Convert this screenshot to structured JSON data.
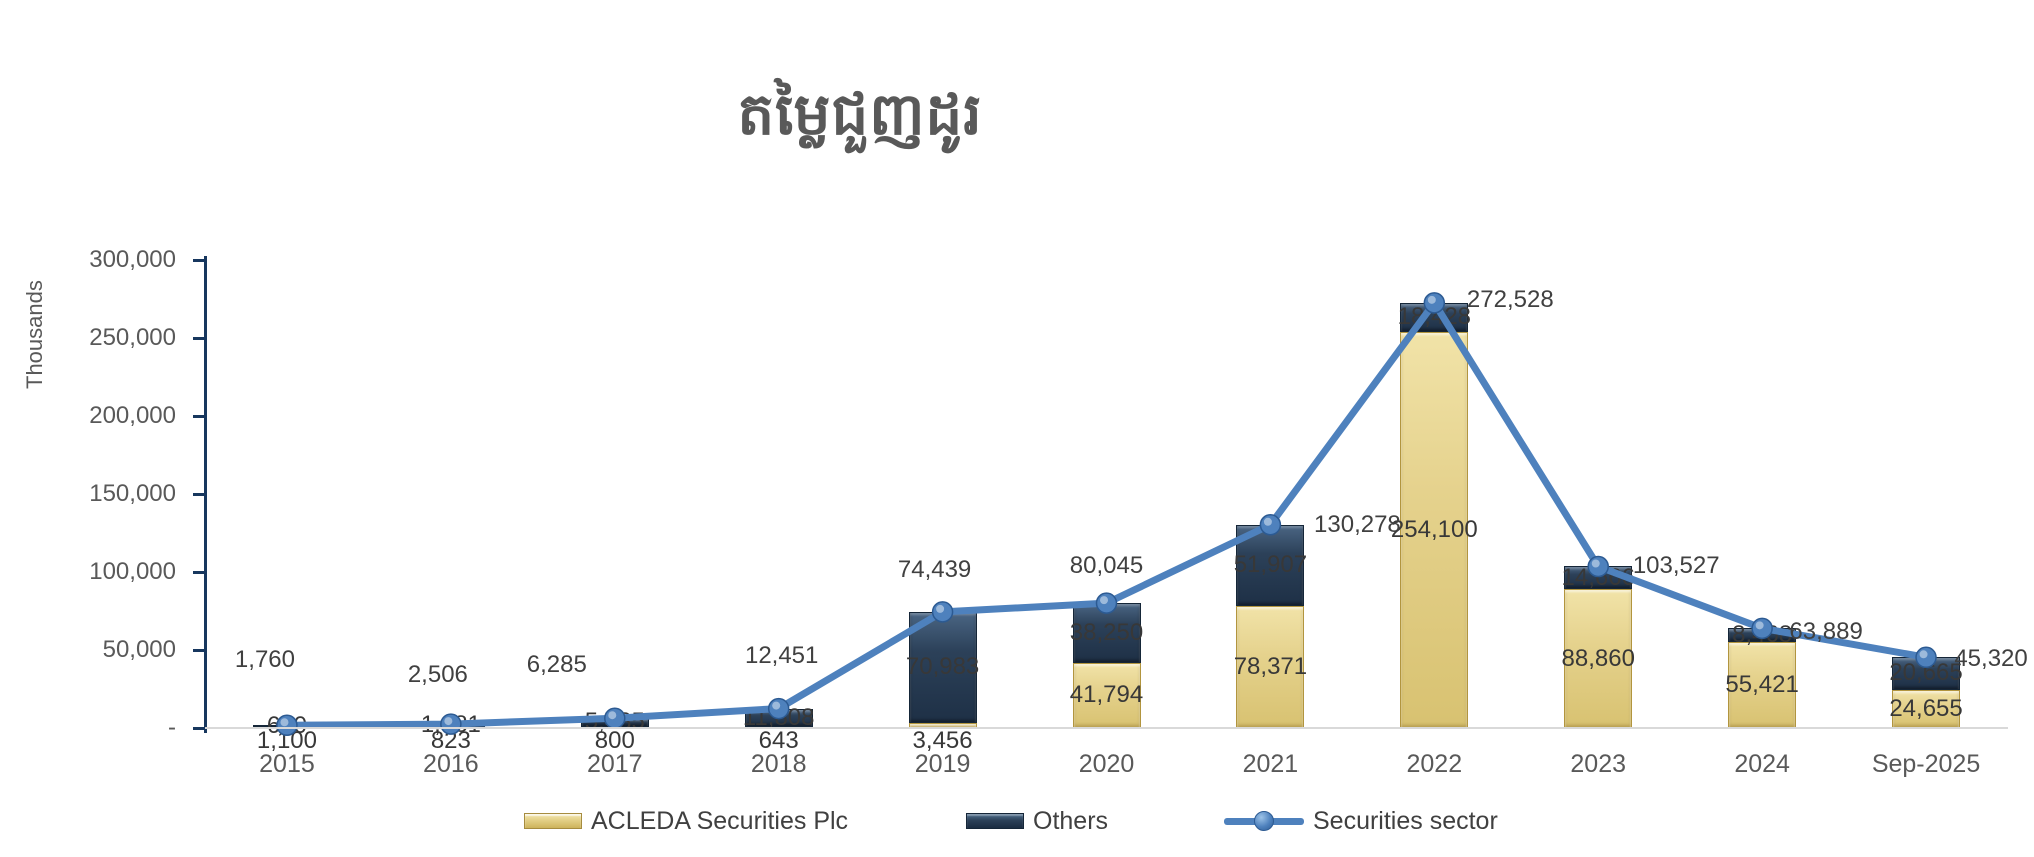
{
  "chart_data": {
    "type": "combo-stacked-bar-line",
    "title": "តម្លៃជួញដូរ",
    "y_axis_label": "Thousands",
    "y_ticks": [
      "300,000",
      "250,000",
      "200,000",
      "150,000",
      "100,000",
      "50,000",
      "-"
    ],
    "ylim": [
      0,
      300000
    ],
    "grid": false,
    "legend_position": "bottom",
    "stacked": true,
    "categories": [
      "2015",
      "2016",
      "2017",
      "2018",
      "2019",
      "2020",
      "2021",
      "2022",
      "2023",
      "2024",
      "Sep-2025"
    ],
    "series": [
      {
        "name": "ACLEDA Securities Plc",
        "type": "bar",
        "color": "#E5D28D",
        "values": [
          1100,
          823,
          800,
          643,
          3456,
          41794,
          78371,
          254100,
          88860,
          55421,
          24655
        ],
        "labels": [
          "1,100",
          "823",
          "800",
          "643",
          "3,456",
          "41,794",
          "78,371",
          "254,100",
          "88,860",
          "55,421",
          "24,655"
        ]
      },
      {
        "name": "Others",
        "type": "bar",
        "color": "#2C4159",
        "values": [
          660,
          1681,
          5485,
          11808,
          70983,
          38250,
          51907,
          18428,
          14666,
          8468,
          20665
        ],
        "labels": [
          "660",
          "1,681",
          "5,485",
          "11,808",
          "70,983",
          "38,250",
          "51,907",
          "18,428",
          "14,666",
          "8,468",
          "20,665"
        ]
      },
      {
        "name": "Securities sector",
        "type": "line",
        "color": "#4E81BD",
        "values": [
          1760,
          2506,
          6285,
          12451,
          74439,
          80045,
          130278,
          272528,
          103527,
          63889,
          45320
        ],
        "labels": [
          "1,760",
          "2,506",
          "6,285",
          "12,451",
          "74,439",
          "80,045",
          "130,278",
          "272,528",
          "103,527",
          "63,889",
          "45,320"
        ]
      }
    ]
  }
}
